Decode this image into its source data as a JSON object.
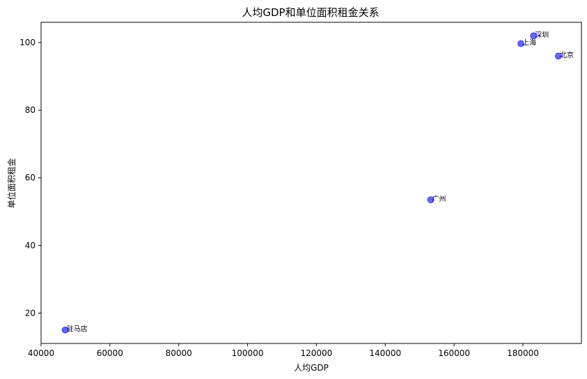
{
  "chart_data": {
    "type": "scatter",
    "title": "人均GDP和单位面积租金关系",
    "xlabel": "人均GDP",
    "ylabel": "单位面积租金",
    "xlim": [
      40000,
      197000
    ],
    "ylim": [
      11,
      106
    ],
    "xticks": [
      40000,
      60000,
      80000,
      100000,
      120000,
      140000,
      160000,
      180000
    ],
    "yticks": [
      20,
      40,
      60,
      80,
      100
    ],
    "grid": false,
    "point_color": "#0000ff",
    "point_alpha": 0.6,
    "points": [
      {
        "label": "驻马店",
        "x": 47000,
        "y": 15
      },
      {
        "label": "广州",
        "x": 153200,
        "y": 53.5
      },
      {
        "label": "上海",
        "x": 179400,
        "y": 99.7
      },
      {
        "label": "深圳",
        "x": 183100,
        "y": 102
      },
      {
        "label": "北京",
        "x": 190300,
        "y": 96
      }
    ]
  }
}
